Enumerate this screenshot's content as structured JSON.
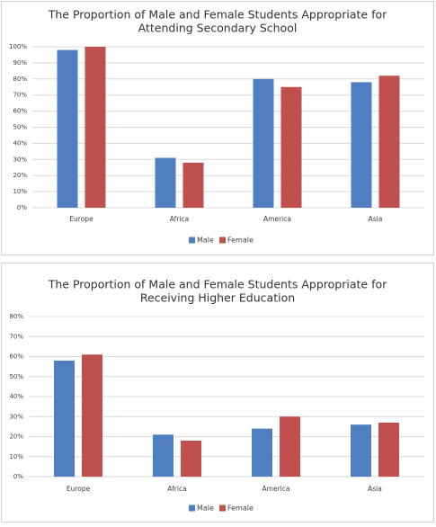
{
  "chart_data": [
    {
      "type": "bar",
      "title": [
        "The Proportion of Male and Female Students Appropriate for",
        "Attending Secondary School"
      ],
      "categories": [
        "Europe",
        "Africa",
        "America",
        "Asia"
      ],
      "series": [
        {
          "name": "Male",
          "color": "#4f7fc1",
          "values": [
            98,
            31,
            80,
            78
          ]
        },
        {
          "name": "Female",
          "color": "#c0504d",
          "values": [
            100,
            28,
            75,
            82
          ]
        }
      ],
      "ylim": [
        0,
        100
      ],
      "yticks": [
        {
          "value": 0,
          "label": "0%"
        },
        {
          "value": 10,
          "label": "10%"
        },
        {
          "value": 20,
          "label": "20%"
        },
        {
          "value": 30,
          "label": "30%"
        },
        {
          "value": 40,
          "label": "40%"
        },
        {
          "value": 50,
          "label": "50%"
        },
        {
          "value": 60,
          "label": "60%"
        },
        {
          "value": 70,
          "label": "70%"
        },
        {
          "value": 80,
          "label": "80%"
        },
        {
          "value": 90,
          "label": "90%"
        },
        {
          "value": 100,
          "label": "100%"
        }
      ],
      "grid": true,
      "legend": "bottom"
    },
    {
      "type": "bar",
      "title": [
        "The Proportion of Male and Female Students Appropriate for",
        "Receiving Higher Education"
      ],
      "categories": [
        "Europe",
        "Africa",
        "America",
        "Asia"
      ],
      "series": [
        {
          "name": "Male",
          "color": "#4f7fc1",
          "values": [
            58,
            21,
            24,
            26
          ]
        },
        {
          "name": "Female",
          "color": "#c0504d",
          "values": [
            61,
            18,
            30,
            27
          ]
        }
      ],
      "ylim": [
        0,
        80
      ],
      "yticks": [
        {
          "value": 0,
          "label": "0%"
        },
        {
          "value": 10,
          "label": "10%"
        },
        {
          "value": 20,
          "label": "20%"
        },
        {
          "value": 30,
          "label": "30%"
        },
        {
          "value": 40,
          "label": "40%"
        },
        {
          "value": 50,
          "label": "50%"
        },
        {
          "value": 60,
          "label": "60%"
        },
        {
          "value": 70,
          "label": "70%"
        },
        {
          "value": 80,
          "label": "80%"
        }
      ],
      "grid": true,
      "legend": "bottom"
    }
  ]
}
